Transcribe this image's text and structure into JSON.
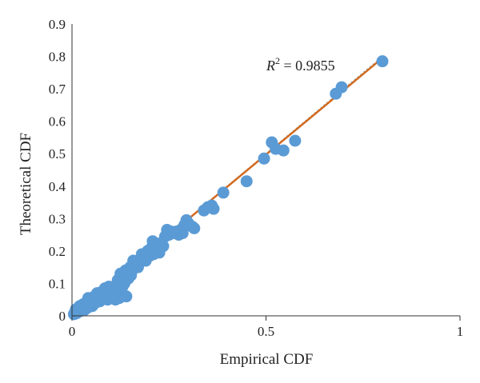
{
  "chart_data": {
    "type": "scatter",
    "xlabel": "Empirical CDF",
    "ylabel": "Theoretical CDF",
    "xlim": [
      0,
      1
    ],
    "ylim": [
      0,
      0.9
    ],
    "x_ticks": [
      "0",
      "0.5",
      "1"
    ],
    "y_ticks": [
      "0",
      "0.1",
      "0.2",
      "0.3",
      "0.4",
      "0.5",
      "0.6",
      "0.7",
      "0.8",
      "0.9"
    ],
    "grid": false,
    "legend": "none",
    "annotation": {
      "prefix": "R",
      "sup": "2",
      "suffix": " = 0.9855"
    },
    "colors": {
      "points": "#5b9bd5",
      "fit_line": "#d2691e",
      "reference_line": "#7fa5b5"
    },
    "series": [
      {
        "points": [
          [
            0.005,
            0.005
          ],
          [
            0.008,
            0.012
          ],
          [
            0.01,
            0.02
          ],
          [
            0.012,
            0.008
          ],
          [
            0.015,
            0.018
          ],
          [
            0.018,
            0.025
          ],
          [
            0.02,
            0.03
          ],
          [
            0.022,
            0.015
          ],
          [
            0.025,
            0.022
          ],
          [
            0.028,
            0.035
          ],
          [
            0.03,
            0.028
          ],
          [
            0.032,
            0.018
          ],
          [
            0.035,
            0.04
          ],
          [
            0.038,
            0.03
          ],
          [
            0.04,
            0.045
          ],
          [
            0.04,
            0.025
          ],
          [
            0.042,
            0.055
          ],
          [
            0.045,
            0.035
          ],
          [
            0.048,
            0.04
          ],
          [
            0.05,
            0.05
          ],
          [
            0.052,
            0.03
          ],
          [
            0.055,
            0.045
          ],
          [
            0.058,
            0.06
          ],
          [
            0.06,
            0.04
          ],
          [
            0.062,
            0.055
          ],
          [
            0.065,
            0.07
          ],
          [
            0.068,
            0.05
          ],
          [
            0.07,
            0.065
          ],
          [
            0.072,
            0.045
          ],
          [
            0.075,
            0.06
          ],
          [
            0.078,
            0.075
          ],
          [
            0.08,
            0.055
          ],
          [
            0.082,
            0.07
          ],
          [
            0.085,
            0.085
          ],
          [
            0.088,
            0.06
          ],
          [
            0.09,
            0.075
          ],
          [
            0.092,
            0.05
          ],
          [
            0.095,
            0.09
          ],
          [
            0.098,
            0.065
          ],
          [
            0.1,
            0.08
          ],
          [
            0.102,
            0.055
          ],
          [
            0.105,
            0.07
          ],
          [
            0.108,
            0.06
          ],
          [
            0.11,
            0.085
          ],
          [
            0.112,
            0.05
          ],
          [
            0.115,
            0.065
          ],
          [
            0.118,
            0.11
          ],
          [
            0.12,
            0.075
          ],
          [
            0.122,
            0.055
          ],
          [
            0.125,
            0.13
          ],
          [
            0.128,
            0.06
          ],
          [
            0.13,
            0.09
          ],
          [
            0.132,
            0.12
          ],
          [
            0.135,
            0.1
          ],
          [
            0.138,
            0.14
          ],
          [
            0.14,
            0.06
          ],
          [
            0.142,
            0.13
          ],
          [
            0.145,
            0.115
          ],
          [
            0.15,
            0.15
          ],
          [
            0.152,
            0.125
          ],
          [
            0.155,
            0.14
          ],
          [
            0.158,
            0.17
          ],
          [
            0.16,
            0.155
          ],
          [
            0.165,
            0.16
          ],
          [
            0.17,
            0.15
          ],
          [
            0.175,
            0.165
          ],
          [
            0.18,
            0.19
          ],
          [
            0.185,
            0.175
          ],
          [
            0.19,
            0.17
          ],
          [
            0.195,
            0.2
          ],
          [
            0.2,
            0.185
          ],
          [
            0.205,
            0.21
          ],
          [
            0.208,
            0.23
          ],
          [
            0.21,
            0.19
          ],
          [
            0.215,
            0.2
          ],
          [
            0.22,
            0.215
          ],
          [
            0.225,
            0.195
          ],
          [
            0.23,
            0.225
          ],
          [
            0.235,
            0.215
          ],
          [
            0.24,
            0.245
          ],
          [
            0.245,
            0.265
          ],
          [
            0.25,
            0.25
          ],
          [
            0.255,
            0.26
          ],
          [
            0.26,
            0.255
          ],
          [
            0.27,
            0.26
          ],
          [
            0.275,
            0.25
          ],
          [
            0.28,
            0.265
          ],
          [
            0.285,
            0.255
          ],
          [
            0.29,
            0.28
          ],
          [
            0.295,
            0.295
          ],
          [
            0.3,
            0.285
          ],
          [
            0.31,
            0.275
          ],
          [
            0.315,
            0.27
          ],
          [
            0.34,
            0.325
          ],
          [
            0.35,
            0.335
          ],
          [
            0.36,
            0.34
          ],
          [
            0.365,
            0.33
          ],
          [
            0.39,
            0.38
          ],
          [
            0.45,
            0.415
          ],
          [
            0.495,
            0.485
          ],
          [
            0.515,
            0.535
          ],
          [
            0.525,
            0.515
          ],
          [
            0.545,
            0.51
          ],
          [
            0.575,
            0.54
          ],
          [
            0.68,
            0.685
          ],
          [
            0.695,
            0.705
          ],
          [
            0.8,
            0.785
          ]
        ]
      }
    ],
    "fit_line": {
      "x": [
        0.01,
        0.8
      ],
      "y": [
        0.011,
        0.795
      ]
    },
    "reference_line": {
      "x": [
        0,
        0.8
      ],
      "y": [
        0,
        0.8
      ]
    }
  }
}
